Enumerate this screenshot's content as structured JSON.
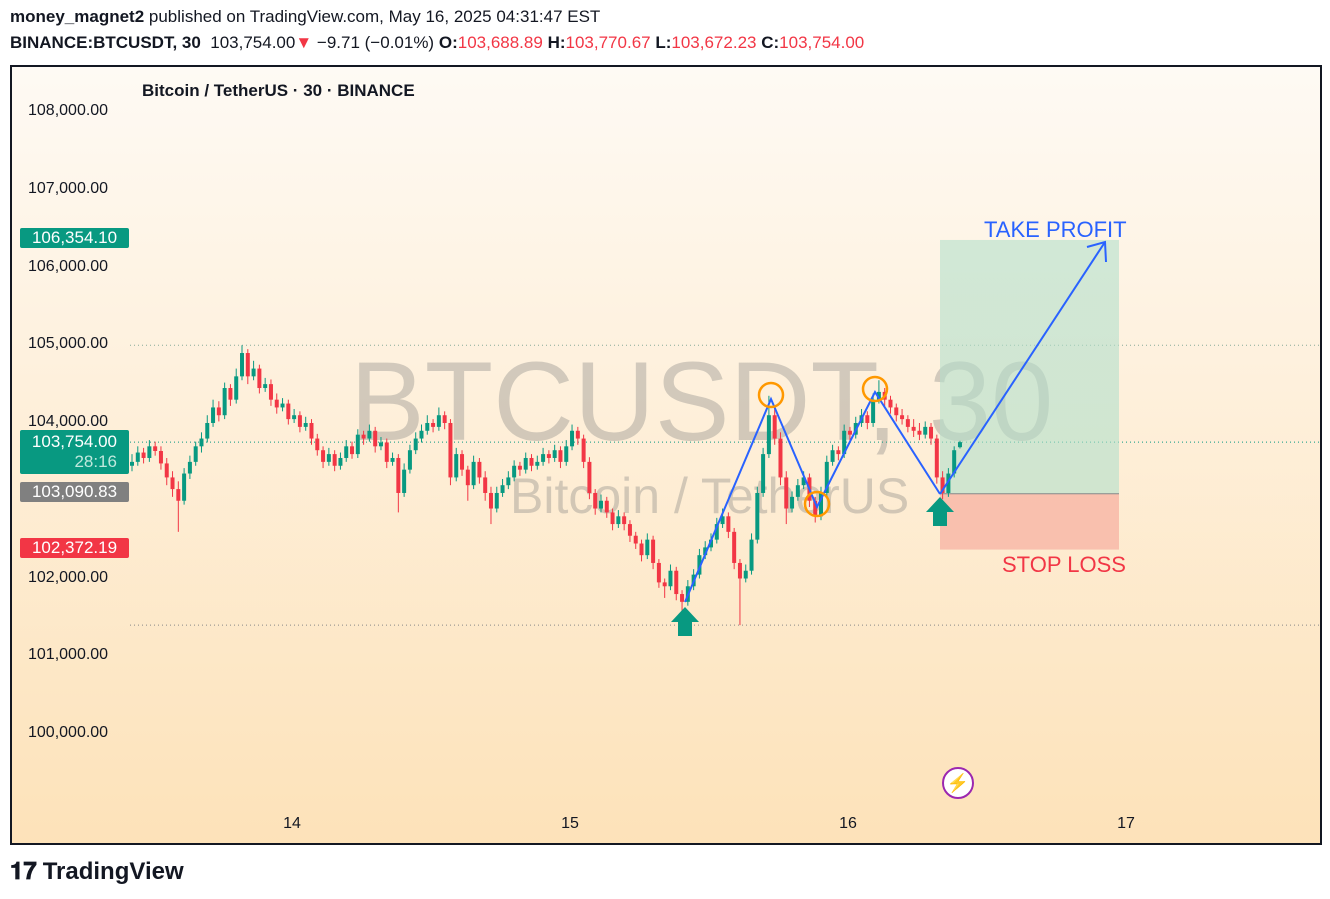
{
  "header": {
    "author": "money_magnet2",
    "published": " published on TradingView.com, May 16, 2025 04:31:47 EST",
    "symbol": "BINANCE:BTCUSDT, 30",
    "price": "103,754.00",
    "change": "−9.71 (−0.01%)",
    "o_label": "O:",
    "o": "103,688.89",
    "h_label": "H:",
    "h": "103,770.67",
    "l_label": "L:",
    "l": "103,672.23",
    "c_label": "C:",
    "c": "103,754.00"
  },
  "chart_title": "Bitcoin / TetherUS · 30 · BINANCE",
  "watermark": {
    "main": "BTCUSDT, 30",
    "sub": "Bitcoin / TetherUS"
  },
  "colors": {
    "up": "#089981",
    "down": "#f23645",
    "line": "#2962ff",
    "circle": "#ff9800",
    "profit": "#b2dfcc",
    "loss": "#f8b5a5"
  },
  "chart_data": {
    "type": "candlestick",
    "ylim": [
      99200,
      108500
    ],
    "y_ticks": [
      "108,000.00",
      "107,000.00",
      "106,000.00",
      "105,000.00",
      "104,000.00",
      "102,000.00",
      "101,000.00",
      "100,000.00"
    ],
    "y_tick_values": [
      108000,
      107000,
      106000,
      105000,
      104000,
      102000,
      101000,
      100000
    ],
    "x_ticks": [
      "14",
      "15",
      "16",
      "17"
    ],
    "price_tags": {
      "take_profit": "106,354.10",
      "current": "103,754.00",
      "countdown": "28:16",
      "entry": "103,090.83",
      "stop_loss": "102,372.19"
    },
    "levels": {
      "take_profit": 106354.1,
      "current": 103754,
      "entry": 103090.83,
      "stop_loss": 102372.19
    },
    "annotations": {
      "take_profit": "TAKE PROFIT",
      "stop_loss": "STOP LOSS"
    },
    "candles": [
      [
        103450,
        103600,
        103380,
        103500
      ],
      [
        103500,
        103700,
        103450,
        103620
      ],
      [
        103620,
        103680,
        103480,
        103550
      ],
      [
        103550,
        103780,
        103500,
        103700
      ],
      [
        103700,
        103760,
        103580,
        103640
      ],
      [
        103640,
        103700,
        103400,
        103480
      ],
      [
        103480,
        103550,
        103200,
        103300
      ],
      [
        103300,
        103380,
        103050,
        103150
      ],
      [
        103150,
        103250,
        102600,
        103000
      ],
      [
        103000,
        103420,
        102950,
        103350
      ],
      [
        103350,
        103580,
        103280,
        103500
      ],
      [
        103500,
        103760,
        103450,
        103700
      ],
      [
        103700,
        103880,
        103620,
        103800
      ],
      [
        103800,
        104100,
        103750,
        104000
      ],
      [
        104000,
        104300,
        103950,
        104200
      ],
      [
        104200,
        104280,
        104020,
        104100
      ],
      [
        104100,
        104520,
        104050,
        104450
      ],
      [
        104450,
        104500,
        104220,
        104300
      ],
      [
        104300,
        104700,
        104250,
        104600
      ],
      [
        104600,
        105000,
        104550,
        104900
      ],
      [
        104900,
        104950,
        104500,
        104600
      ],
      [
        104600,
        104800,
        104550,
        104700
      ],
      [
        104700,
        104750,
        104380,
        104450
      ],
      [
        104450,
        104580,
        104400,
        104500
      ],
      [
        104500,
        104560,
        104220,
        104300
      ],
      [
        104300,
        104380,
        104120,
        104200
      ],
      [
        104200,
        104320,
        104150,
        104250
      ],
      [
        104250,
        104300,
        103980,
        104050
      ],
      [
        104050,
        104180,
        104000,
        104100
      ],
      [
        104100,
        104150,
        103880,
        103950
      ],
      [
        103950,
        104080,
        103900,
        104000
      ],
      [
        104000,
        104050,
        103720,
        103800
      ],
      [
        103800,
        103860,
        103580,
        103650
      ],
      [
        103650,
        103700,
        103420,
        103500
      ],
      [
        103500,
        103680,
        103450,
        103600
      ],
      [
        103600,
        103650,
        103380,
        103450
      ],
      [
        103450,
        103620,
        103400,
        103550
      ],
      [
        103550,
        103780,
        103500,
        103700
      ],
      [
        103700,
        103760,
        103540,
        103600
      ],
      [
        103600,
        103920,
        103550,
        103850
      ],
      [
        103850,
        103900,
        103720,
        103800
      ],
      [
        103800,
        103980,
        103760,
        103900
      ],
      [
        103900,
        103950,
        103620,
        103700
      ],
      [
        103700,
        103820,
        103650,
        103750
      ],
      [
        103750,
        103800,
        103420,
        103500
      ],
      [
        103500,
        103620,
        103450,
        103550
      ],
      [
        103550,
        103600,
        102850,
        103100
      ],
      [
        103100,
        103480,
        103050,
        103400
      ],
      [
        103400,
        103720,
        103350,
        103650
      ],
      [
        103650,
        103880,
        103600,
        103800
      ],
      [
        103800,
        103980,
        103750,
        103900
      ],
      [
        103900,
        104100,
        103850,
        104000
      ],
      [
        104000,
        104050,
        103880,
        103950
      ],
      [
        103950,
        104200,
        103900,
        104100
      ],
      [
        104100,
        104150,
        103920,
        104000
      ],
      [
        104000,
        104050,
        103200,
        103300
      ],
      [
        103300,
        103680,
        103250,
        103600
      ],
      [
        103600,
        103650,
        103320,
        103400
      ],
      [
        103400,
        103450,
        103000,
        103200
      ],
      [
        103200,
        103580,
        103150,
        103500
      ],
      [
        103500,
        103550,
        103220,
        103300
      ],
      [
        103300,
        103380,
        103000,
        103100
      ],
      [
        103100,
        103180,
        102700,
        102900
      ],
      [
        102900,
        103180,
        102850,
        103100
      ],
      [
        103100,
        103280,
        103050,
        103200
      ],
      [
        103200,
        103380,
        103150,
        103300
      ],
      [
        103300,
        103520,
        103250,
        103450
      ],
      [
        103450,
        103500,
        103320,
        103400
      ],
      [
        103400,
        103620,
        103350,
        103550
      ],
      [
        103550,
        103600,
        103380,
        103450
      ],
      [
        103450,
        103580,
        103400,
        103500
      ],
      [
        103500,
        103680,
        103450,
        103600
      ],
      [
        103600,
        103650,
        103480,
        103550
      ],
      [
        103550,
        103720,
        103500,
        103650
      ],
      [
        103650,
        103700,
        103420,
        103500
      ],
      [
        103500,
        103780,
        103450,
        103700
      ],
      [
        103700,
        103980,
        103650,
        103900
      ],
      [
        103900,
        103950,
        103720,
        103800
      ],
      [
        103800,
        103850,
        103420,
        103500
      ],
      [
        103500,
        103560,
        103020,
        103100
      ],
      [
        103100,
        103150,
        102820,
        102900
      ],
      [
        102900,
        103080,
        102850,
        103000
      ],
      [
        103000,
        103050,
        102780,
        102850
      ],
      [
        102850,
        102900,
        102620,
        102700
      ],
      [
        102700,
        102880,
        102650,
        102800
      ],
      [
        102800,
        102850,
        102620,
        102700
      ],
      [
        102700,
        102750,
        102470,
        102550
      ],
      [
        102550,
        102600,
        102380,
        102450
      ],
      [
        102450,
        102500,
        102220,
        102300
      ],
      [
        102300,
        102580,
        102250,
        102500
      ],
      [
        102500,
        102550,
        102120,
        102200
      ],
      [
        102200,
        102250,
        101880,
        101950
      ],
      [
        101950,
        102000,
        101750,
        101900
      ],
      [
        101900,
        102180,
        101850,
        102100
      ],
      [
        102100,
        102150,
        101720,
        101800
      ],
      [
        101800,
        101850,
        101500,
        101700
      ],
      [
        101700,
        101980,
        101650,
        101900
      ],
      [
        101900,
        102120,
        101850,
        102050
      ],
      [
        102050,
        102380,
        102000,
        102300
      ],
      [
        102300,
        102480,
        102250,
        102400
      ],
      [
        102400,
        102580,
        102350,
        102500
      ],
      [
        102500,
        102780,
        102450,
        102700
      ],
      [
        102700,
        102900,
        102650,
        102800
      ],
      [
        102800,
        102850,
        102520,
        102600
      ],
      [
        102600,
        102650,
        102120,
        102200
      ],
      [
        102200,
        102250,
        101400,
        102000
      ],
      [
        102000,
        102180,
        101950,
        102100
      ],
      [
        102100,
        102580,
        102050,
        102500
      ],
      [
        102500,
        103180,
        102450,
        103100
      ],
      [
        103100,
        103680,
        103050,
        103600
      ],
      [
        103600,
        104350,
        103550,
        104100
      ],
      [
        104100,
        104200,
        103720,
        103800
      ],
      [
        103800,
        103880,
        103200,
        103300
      ],
      [
        103300,
        103380,
        102700,
        102900
      ],
      [
        102900,
        103120,
        102850,
        103050
      ],
      [
        103050,
        103280,
        103000,
        103200
      ],
      [
        103200,
        103380,
        103150,
        103300
      ],
      [
        103300,
        103350,
        102920,
        103000
      ],
      [
        103000,
        103050,
        102720,
        102800
      ],
      [
        102800,
        103180,
        102750,
        103100
      ],
      [
        103100,
        103580,
        103050,
        103500
      ],
      [
        103500,
        103720,
        103450,
        103650
      ],
      [
        103650,
        103700,
        103520,
        103600
      ],
      [
        103600,
        103980,
        103550,
        103900
      ],
      [
        103900,
        103950,
        103780,
        103850
      ],
      [
        103850,
        104080,
        103800,
        104000
      ],
      [
        104000,
        104180,
        103950,
        104100
      ],
      [
        104100,
        104150,
        103920,
        104000
      ],
      [
        104000,
        104380,
        103950,
        104300
      ],
      [
        104300,
        104550,
        104250,
        104400
      ],
      [
        104400,
        104450,
        104220,
        104300
      ],
      [
        104300,
        104350,
        104120,
        104200
      ],
      [
        104200,
        104250,
        104020,
        104100
      ],
      [
        104100,
        104180,
        103980,
        104050
      ],
      [
        104050,
        104100,
        103880,
        103950
      ],
      [
        103950,
        104050,
        103820,
        103900
      ],
      [
        103900,
        104000,
        103780,
        103850
      ],
      [
        103850,
        104020,
        103800,
        103950
      ],
      [
        103950,
        104000,
        103720,
        103800
      ],
      [
        103800,
        103850,
        103220,
        103300
      ],
      [
        103300,
        103380,
        103020,
        103100
      ],
      [
        103100,
        103420,
        103050,
        103350
      ],
      [
        103350,
        103700,
        103300,
        103650
      ],
      [
        103688.89,
        103770.67,
        103672.23,
        103754
      ]
    ]
  },
  "footer": {
    "brand": "TradingView"
  }
}
